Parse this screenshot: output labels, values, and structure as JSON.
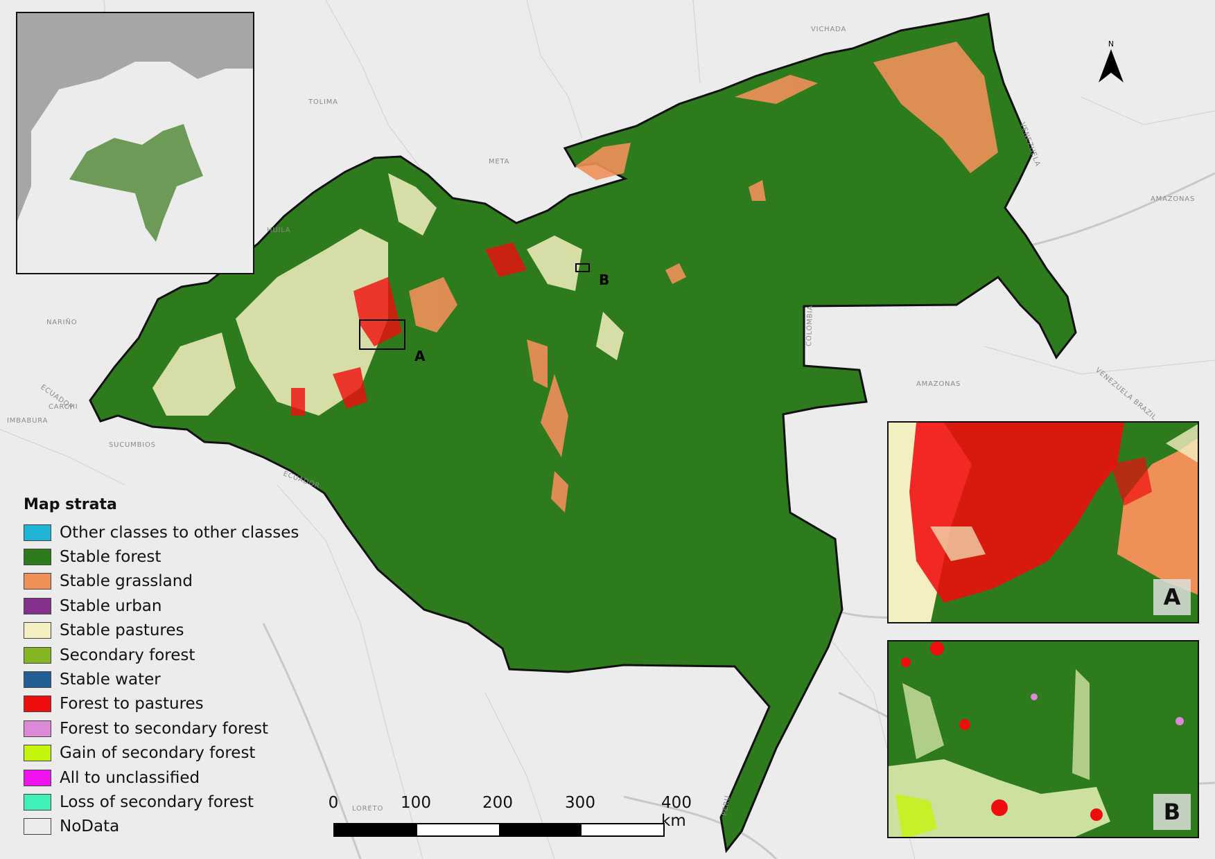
{
  "legend": {
    "title": "Map strata",
    "items": [
      {
        "label": "Other classes to other classes",
        "color": "#1fb5d6"
      },
      {
        "label": "Stable forest",
        "color": "#2e7b1e"
      },
      {
        "label": "Stable grassland",
        "color": "#f09059"
      },
      {
        "label": "Stable urban",
        "color": "#84308c"
      },
      {
        "label": "Stable pastures",
        "color": "#f4efc0"
      },
      {
        "label": "Secondary forest",
        "color": "#86b524"
      },
      {
        "label": "Stable water",
        "color": "#235f94"
      },
      {
        "label": "Forest to pastures",
        "color": "#f00d0d"
      },
      {
        "label": "Forest to secondary forest",
        "color": "#dc8ad6"
      },
      {
        "label": "Gain of secondary forest",
        "color": "#c4f50a"
      },
      {
        "label": "All to unclassified",
        "color": "#f014f0"
      },
      {
        "label": "Loss of secondary forest",
        "color": "#3ff0b8"
      },
      {
        "label": "NoData",
        "color": "#ececec"
      }
    ]
  },
  "scale_bar": {
    "labels": [
      "0",
      "100",
      "200",
      "300",
      "400 km"
    ]
  },
  "north_arrow": {
    "label": "N",
    "icon": "north-arrow-icon"
  },
  "detail_insets": {
    "a_label": "A",
    "b_label": "B"
  },
  "site_markers": {
    "a": "A",
    "b": "B"
  },
  "background_labels": {
    "vichada": "VICHADA",
    "tolima": "TOLIMA",
    "meta": "META",
    "huila": "HUILA",
    "narino": "NARIÑO",
    "ecuador": "ECUADOR",
    "carchi": "CARCHI",
    "imbabura": "IMBABURA",
    "sucumbios": "SUCUMBIOS",
    "amazonas_e": "AMAZONAS",
    "amazonas_se": "AMAZONAS",
    "colombia": "COLOMBIA",
    "venezuela": "VENEZUELA",
    "venezuela_brazil": "VENEZUELA\nBRAZIL",
    "loreto": "LORETO",
    "peru": "PERU",
    "ecuador_border": "ECUADOR"
  },
  "colors": {
    "background": "#ececed",
    "forest": "#2e7b1e",
    "grassland": "#f09059",
    "pastures": "#f4efc0",
    "deforestation": "#f00d0d"
  }
}
